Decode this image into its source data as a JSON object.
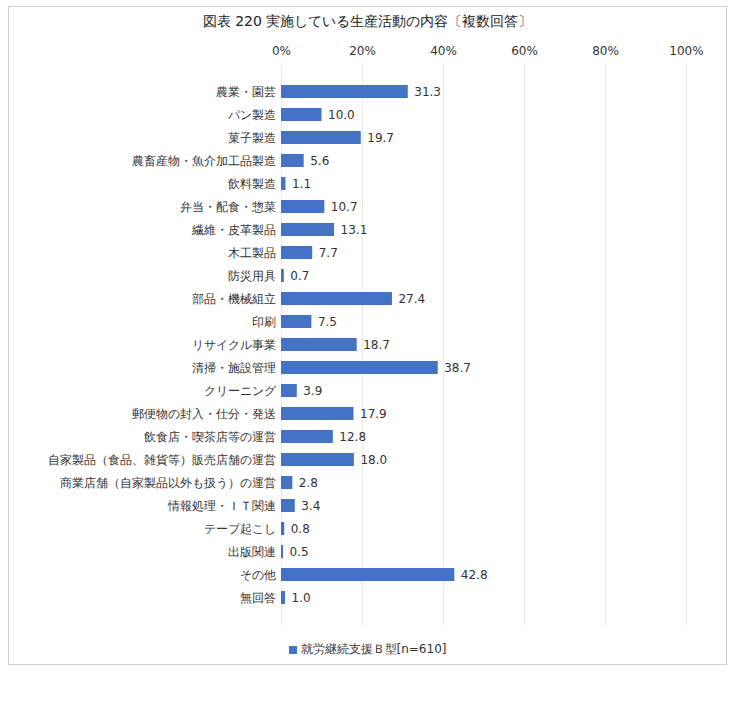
{
  "chart_data": {
    "type": "bar",
    "title": "図表 220 実施している生産活動の内容〔複数回答〕",
    "orientation": "horizontal",
    "categories": [
      "農業・園芸",
      "パン製造",
      "菓子製造",
      "農畜産物・魚介加工品製造",
      "飲料製造",
      "弁当・配食・惣菜",
      "繊維・皮革製品",
      "木工製品",
      "防災用具",
      "部品・機械組立",
      "印刷",
      "リサイクル事業",
      "清掃・施設管理",
      "クリーニング",
      "郵便物の封入・仕分・発送",
      "飲食店・喫茶店等の運営",
      "自家製品（食品、雑貨等）販売店舗の運営",
      "商業店舗（自家製品以外も扱う）の運営",
      "情報処理・ＩＴ関連",
      "テープ起こし",
      "出版関連",
      "その他",
      "無回答"
    ],
    "series": [
      {
        "name": "就労継続支援Ｂ型[n=610]",
        "color": "#4472c4",
        "values": [
          31.3,
          10.0,
          19.7,
          5.6,
          1.1,
          10.7,
          13.1,
          7.7,
          0.7,
          27.4,
          7.5,
          18.7,
          38.7,
          3.9,
          17.9,
          12.8,
          18.0,
          2.8,
          3.4,
          0.8,
          0.5,
          42.8,
          1.0
        ],
        "value_labels": [
          "31.3",
          "10.0",
          "19.7",
          "5.6",
          "1.1",
          "10.7",
          "13.1",
          "7.7",
          "0.7",
          "27.4",
          "7.5",
          "18.7",
          "38.7",
          "3.9",
          "17.9",
          "12.8",
          "18.0",
          "2.8",
          "3.4",
          "0.8",
          "0.5",
          "42.8",
          "1.0"
        ]
      }
    ],
    "xlim": [
      0,
      100
    ],
    "xticks": [
      {
        "value": 0,
        "label": "0%"
      },
      {
        "value": 20,
        "label": "20%"
      },
      {
        "value": 40,
        "label": "40%"
      },
      {
        "value": 60,
        "label": "60%"
      },
      {
        "value": 80,
        "label": "80%"
      },
      {
        "value": 100,
        "label": "100%"
      }
    ],
    "grid": true,
    "data_labels": true,
    "legend": "bottom"
  }
}
